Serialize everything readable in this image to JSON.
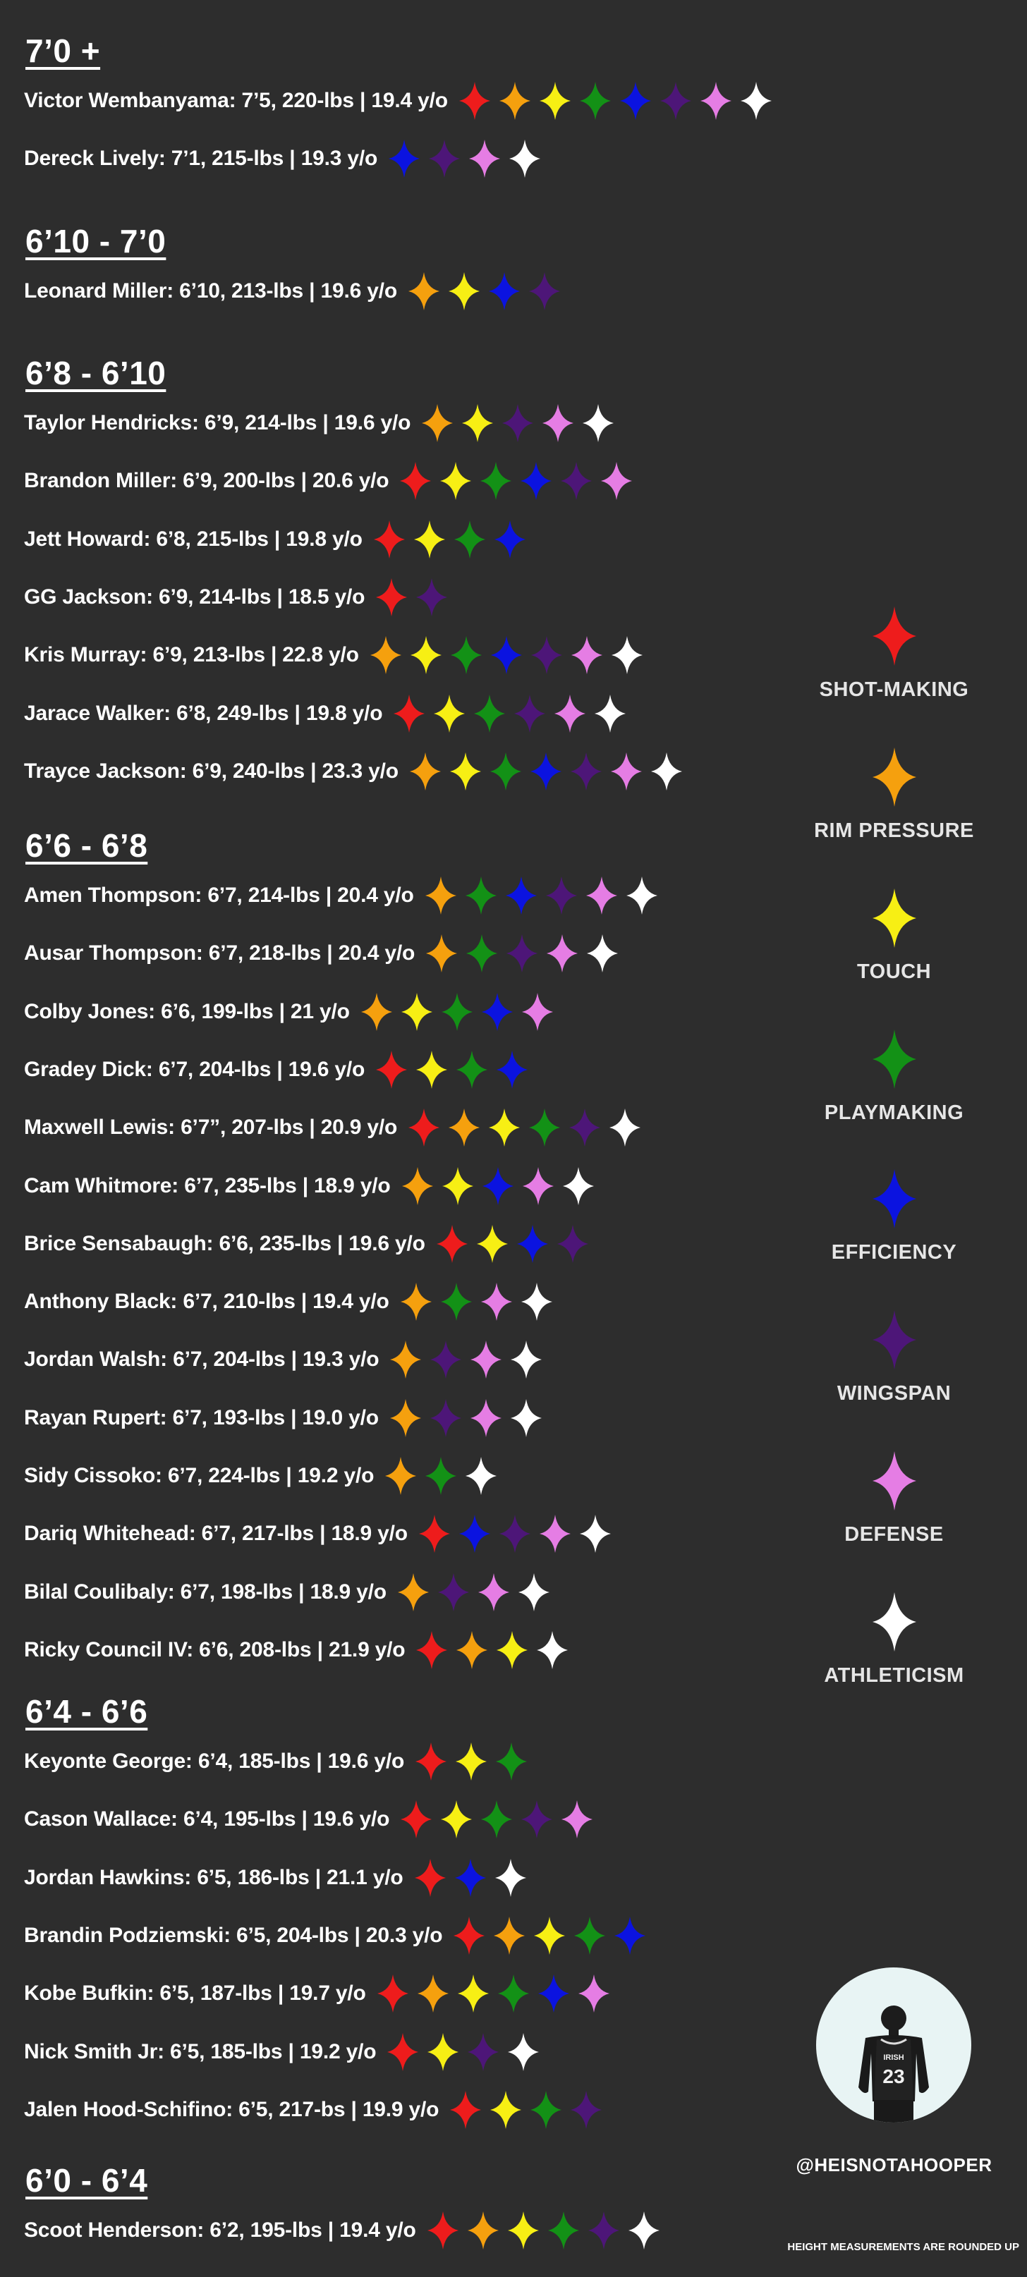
{
  "colors": {
    "shot-making": "#ee1c1c",
    "rim-pressure": "#f5a00e",
    "touch": "#f7ef14",
    "playmaking": "#139116",
    "efficiency": "#0b13e0",
    "wingspan": "#4d1678",
    "defense": "#e57de4",
    "athleticism": "#ffffff"
  },
  "legend": [
    {
      "key": "shot-making",
      "label": "SHOT-MAKING"
    },
    {
      "key": "rim-pressure",
      "label": "RIM PRESSURE"
    },
    {
      "key": "touch",
      "label": "TOUCH"
    },
    {
      "key": "playmaking",
      "label": "PLAYMAKING"
    },
    {
      "key": "efficiency",
      "label": "EFFICIENCY"
    },
    {
      "key": "wingspan",
      "label": "WINGSPAN"
    },
    {
      "key": "defense",
      "label": "DEFENSE"
    },
    {
      "key": "athleticism",
      "label": "ATHLETICISM"
    }
  ],
  "sections": [
    {
      "title": "7’0 +",
      "players": [
        {
          "name": "Victor Wembanyama: 7’5, 220-lbs | 19.4 y/o",
          "stars": [
            "shot-making",
            "rim-pressure",
            "touch",
            "playmaking",
            "efficiency",
            "wingspan",
            "defense",
            "athleticism"
          ]
        },
        {
          "name": "Dereck Lively: 7’1, 215-lbs | 19.3 y/o",
          "stars": [
            "efficiency",
            "wingspan",
            "defense",
            "athleticism"
          ]
        }
      ]
    },
    {
      "title": "6’10 - 7’0",
      "players": [
        {
          "name": "Leonard Miller: 6’10, 213-lbs | 19.6 y/o",
          "stars": [
            "rim-pressure",
            "touch",
            "efficiency",
            "wingspan"
          ]
        }
      ]
    },
    {
      "title": "6’8 - 6’10",
      "players": [
        {
          "name": "Taylor Hendricks: 6’9, 214-lbs | 19.6 y/o",
          "stars": [
            "rim-pressure",
            "touch",
            "wingspan",
            "defense",
            "athleticism"
          ]
        },
        {
          "name": "Brandon Miller: 6’9, 200-lbs | 20.6 y/o",
          "stars": [
            "shot-making",
            "touch",
            "playmaking",
            "efficiency",
            "wingspan",
            "defense"
          ]
        },
        {
          "name": "Jett Howard: 6’8, 215-lbs | 19.8 y/o",
          "stars": [
            "shot-making",
            "touch",
            "playmaking",
            "efficiency"
          ]
        },
        {
          "name": "GG Jackson: 6’9, 214-lbs | 18.5 y/o",
          "stars": [
            "shot-making",
            "wingspan"
          ]
        },
        {
          "name": "Kris Murray: 6’9, 213-lbs | 22.8 y/o",
          "stars": [
            "rim-pressure",
            "touch",
            "playmaking",
            "efficiency",
            "wingspan",
            "defense",
            "athleticism"
          ]
        },
        {
          "name": "Jarace Walker: 6’8, 249-lbs | 19.8 y/o",
          "stars": [
            "shot-making",
            "touch",
            "playmaking",
            "wingspan",
            "defense",
            "athleticism"
          ]
        },
        {
          "name": "Trayce Jackson: 6’9, 240-lbs | 23.3 y/o",
          "stars": [
            "rim-pressure",
            "touch",
            "playmaking",
            "efficiency",
            "wingspan",
            "defense",
            "athleticism"
          ]
        }
      ]
    },
    {
      "title": "6’6 - 6’8",
      "players": [
        {
          "name": "Amen Thompson: 6’7, 214-lbs | 20.4 y/o",
          "stars": [
            "rim-pressure",
            "playmaking",
            "efficiency",
            "wingspan",
            "defense",
            "athleticism"
          ]
        },
        {
          "name": "Ausar Thompson: 6’7, 218-lbs | 20.4 y/o",
          "stars": [
            "rim-pressure",
            "playmaking",
            "wingspan",
            "defense",
            "athleticism"
          ]
        },
        {
          "name": "Colby Jones: 6’6, 199-lbs | 21 y/o",
          "stars": [
            "rim-pressure",
            "touch",
            "playmaking",
            "efficiency",
            "defense"
          ]
        },
        {
          "name": "Gradey Dick: 6’7, 204-lbs | 19.6 y/o",
          "stars": [
            "shot-making",
            "touch",
            "playmaking",
            "efficiency"
          ]
        },
        {
          "name": "Maxwell Lewis: 6’7”, 207-lbs | 20.9 y/o",
          "stars": [
            "shot-making",
            "rim-pressure",
            "touch",
            "playmaking",
            "wingspan",
            "athleticism"
          ]
        },
        {
          "name": "Cam Whitmore: 6’7, 235-lbs | 18.9 y/o",
          "stars": [
            "rim-pressure",
            "touch",
            "efficiency",
            "defense",
            "athleticism"
          ]
        },
        {
          "name": "Brice Sensabaugh: 6’6, 235-lbs | 19.6 y/o",
          "stars": [
            "shot-making",
            "touch",
            "efficiency",
            "wingspan"
          ]
        },
        {
          "name": "Anthony Black: 6’7, 210-lbs | 19.4 y/o",
          "stars": [
            "rim-pressure",
            "playmaking",
            "defense",
            "athleticism"
          ]
        },
        {
          "name": "Jordan Walsh: 6’7, 204-lbs | 19.3 y/o",
          "stars": [
            "rim-pressure",
            "wingspan",
            "defense",
            "athleticism"
          ]
        },
        {
          "name": "Rayan Rupert: 6’7, 193-lbs | 19.0 y/o",
          "stars": [
            "rim-pressure",
            "wingspan",
            "defense",
            "athleticism"
          ]
        },
        {
          "name": "Sidy Cissoko: 6’7, 224-lbs | 19.2 y/o",
          "stars": [
            "rim-pressure",
            "playmaking",
            "athleticism"
          ]
        },
        {
          "name": "Dariq Whitehead: 6’7, 217-lbs | 18.9 y/o",
          "stars": [
            "shot-making",
            "efficiency",
            "wingspan",
            "defense",
            "athleticism"
          ]
        },
        {
          "name": "Bilal Coulibaly: 6’7, 198-lbs | 18.9 y/o",
          "stars": [
            "rim-pressure",
            "wingspan",
            "defense",
            "athleticism"
          ]
        },
        {
          "name": "Ricky Council IV: 6’6, 208-lbs | 21.9 y/o",
          "stars": [
            "shot-making",
            "rim-pressure",
            "touch",
            "athleticism"
          ]
        }
      ]
    },
    {
      "title": "6’4 - 6’6",
      "players": [
        {
          "name": "Keyonte George: 6’4, 185-lbs | 19.6 y/o",
          "stars": [
            "shot-making",
            "touch",
            "playmaking"
          ]
        },
        {
          "name": "Cason Wallace: 6’4, 195-lbs | 19.6 y/o",
          "stars": [
            "shot-making",
            "touch",
            "playmaking",
            "wingspan",
            "defense"
          ]
        },
        {
          "name": "Jordan Hawkins: 6’5, 186-lbs | 21.1 y/o",
          "stars": [
            "shot-making",
            "efficiency",
            "athleticism"
          ]
        },
        {
          "name": "Brandin Podziemski: 6’5, 204-lbs | 20.3 y/o",
          "stars": [
            "shot-making",
            "rim-pressure",
            "touch",
            "playmaking",
            "efficiency"
          ]
        },
        {
          "name": "Kobe Bufkin: 6’5, 187-lbs | 19.7 y/o",
          "stars": [
            "shot-making",
            "rim-pressure",
            "touch",
            "playmaking",
            "efficiency",
            "defense"
          ]
        },
        {
          "name": "Nick Smith Jr: 6’5, 185-lbs | 19.2 y/o",
          "stars": [
            "shot-making",
            "touch",
            "wingspan",
            "athleticism"
          ]
        },
        {
          "name": "Jalen Hood-Schifino: 6’5, 217-bs | 19.9 y/o",
          "stars": [
            "shot-making",
            "touch",
            "playmaking",
            "wingspan"
          ]
        }
      ]
    },
    {
      "title": "6’0 - 6’4",
      "players": [
        {
          "name": "Scoot Henderson: 6’2, 195-lbs | 19.4 y/o",
          "stars": [
            "shot-making",
            "rim-pressure",
            "touch",
            "playmaking",
            "wingspan",
            "athleticism"
          ]
        }
      ]
    }
  ],
  "handle": "@HEISNOTAHOOPER",
  "footnote": "HEIGHT MEASUREMENTS ARE ROUNDED UP",
  "avatar_jersey": {
    "team": "IRISH",
    "number": "23"
  }
}
